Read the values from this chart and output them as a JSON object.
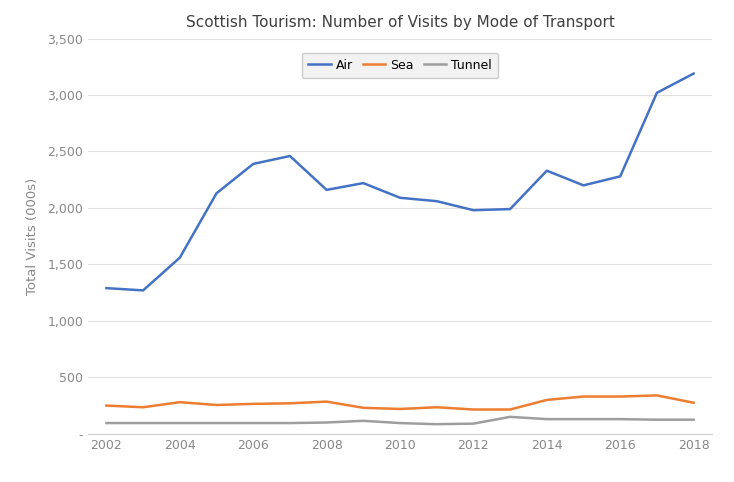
{
  "title": "Scottish Tourism: Number of Visits by Mode of Transport",
  "ylabel": "Total Visits (000s)",
  "years": [
    2002,
    2003,
    2004,
    2005,
    2006,
    2007,
    2008,
    2009,
    2010,
    2011,
    2012,
    2013,
    2014,
    2015,
    2016,
    2017,
    2018
  ],
  "air": [
    1290,
    1270,
    1560,
    2130,
    2390,
    2460,
    2160,
    2220,
    2090,
    2060,
    1980,
    1990,
    2330,
    2200,
    2280,
    3020,
    3190
  ],
  "sea": [
    250,
    235,
    280,
    255,
    265,
    270,
    285,
    230,
    220,
    235,
    215,
    215,
    300,
    330,
    330,
    340,
    275
  ],
  "tunnel": [
    95,
    95,
    95,
    95,
    95,
    95,
    100,
    115,
    95,
    85,
    90,
    150,
    130,
    130,
    130,
    125,
    125
  ],
  "air_color": "#4472C4",
  "sea_color": "#ED7D31",
  "tunnel_color": "#9E9E9E",
  "ylim": [
    0,
    3500
  ],
  "yticks": [
    0,
    500,
    1000,
    1500,
    2000,
    2500,
    3000,
    3500
  ],
  "ytick_labels": [
    "-",
    "500",
    "1,000",
    "1,500",
    "2,000",
    "2,500",
    "3,000",
    "3,500"
  ],
  "background_color": "#ffffff",
  "legend_labels": [
    "Air",
    "Sea",
    "Tunnel"
  ],
  "title_color": "#404040",
  "tick_color": "#888888",
  "grid_color": "#E0E0E0",
  "spine_color": "#D0D0D0"
}
